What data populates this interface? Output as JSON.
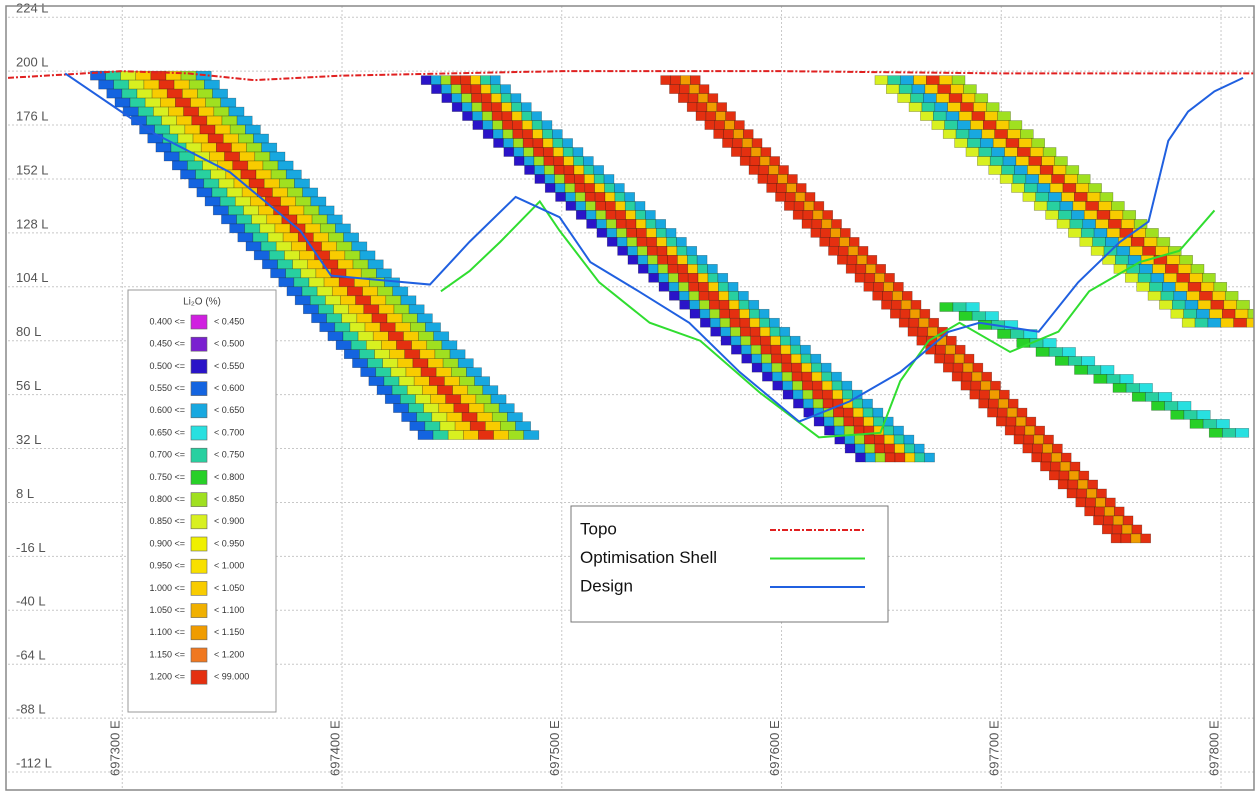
{
  "chart_data": {
    "type": "section",
    "xlim": [
      697248,
      697815
    ],
    "ylim": [
      -120,
      229
    ],
    "grid": true,
    "xticks": [
      {
        "value": 697300,
        "label": "697300 E"
      },
      {
        "value": 697400,
        "label": "697400 E"
      },
      {
        "value": 697500,
        "label": "697500 E"
      },
      {
        "value": 697600,
        "label": "697600 E"
      },
      {
        "value": 697700,
        "label": "697700 E"
      },
      {
        "value": 697800,
        "label": "697800 E"
      }
    ],
    "yticks": [
      {
        "value": 224,
        "label": "224 L"
      },
      {
        "value": 200,
        "label": "200 L"
      },
      {
        "value": 176,
        "label": "176 L"
      },
      {
        "value": 152,
        "label": "152 L"
      },
      {
        "value": 128,
        "label": "128 L"
      },
      {
        "value": 104,
        "label": "104 L"
      },
      {
        "value": 80,
        "label": "80 L"
      },
      {
        "value": 56,
        "label": "56 L"
      },
      {
        "value": 32,
        "label": "32 L"
      },
      {
        "value": 8,
        "label": "8 L"
      },
      {
        "value": -16,
        "label": "-16 L"
      },
      {
        "value": -40,
        "label": "-40 L"
      },
      {
        "value": -64,
        "label": "-64 L"
      },
      {
        "value": -88,
        "label": "-88 L"
      },
      {
        "value": -112,
        "label": "-112 L"
      }
    ],
    "series": [
      {
        "name": "Topo",
        "color": "#e02020",
        "x": [
          697248,
          697300,
          697330,
          697360,
          697400,
          697500,
          697600,
          697700,
          697800,
          697815
        ],
        "values": [
          197,
          200,
          199,
          196,
          198,
          200,
          200,
          199,
          199,
          199
        ]
      },
      {
        "name": "Optimisation Shell",
        "color": "#30dd30",
        "x": [
          697445,
          697458,
          697472,
          697490,
          697499,
          697517,
          697540,
          697563,
          697590,
          697617,
          697645,
          697654,
          697667,
          697681,
          697704,
          697726,
          697740,
          697763,
          697781,
          697797
        ],
        "values": [
          102,
          111,
          124,
          142,
          129,
          106,
          88,
          80,
          57,
          37,
          39,
          62,
          80,
          88,
          75,
          84,
          102,
          115,
          120,
          138
        ]
      },
      {
        "name": "Design",
        "color": "#2060e0",
        "x": [
          697274,
          697313,
          697349,
          697381,
          697395,
          697440,
          697458,
          697479,
          697499,
          697513,
          697535,
          697558,
          697581,
          697608,
          697631,
          697654,
          697676,
          697690,
          697717,
          697735,
          697754,
          697767,
          697776,
          697785,
          697797,
          697810
        ],
        "values": [
          199,
          173,
          155,
          129,
          109,
          105,
          124,
          144,
          135,
          115,
          102,
          88,
          66,
          44,
          53,
          66,
          84,
          88,
          84,
          106,
          124,
          133,
          169,
          182,
          191,
          197
        ]
      }
    ],
    "lodes": [
      {
        "x_top": 697313,
        "y_top": 200,
        "x_bottom": 697463,
        "y_bottom": 39,
        "width": 55,
        "grades": [
          0.55,
          0.7,
          0.85,
          1.0,
          1.25,
          1.0,
          0.8,
          0.6
        ]
      },
      {
        "x_top": 697454,
        "y_top": 198,
        "x_bottom": 697654,
        "y_bottom": 28,
        "width": 36,
        "grades": [
          0.5,
          0.6,
          0.8,
          1.25,
          1.25,
          1.0,
          0.7,
          0.6
        ]
      },
      {
        "x_top": 697554,
        "y_top": 198,
        "x_bottom": 697763,
        "y_bottom": -10,
        "width": 18,
        "grades": [
          1.25,
          1.25,
          1.1,
          1.25
        ]
      },
      {
        "x_top": 697663,
        "y_top": 198,
        "x_bottom": 697808,
        "y_bottom": 86,
        "width": 41,
        "grades": [
          0.85,
          0.7,
          0.6,
          1.0,
          1.25,
          1.0,
          0.8
        ]
      },
      {
        "x_top": 697681,
        "y_top": 97,
        "x_bottom": 697808,
        "y_bottom": 39,
        "width": 18,
        "grades": [
          0.75,
          0.7,
          0.65
        ]
      }
    ],
    "grade_legend": {
      "title": "Li₂O (%)",
      "items": [
        {
          "lower": {
            "value": 0.4,
            "label": "0.400 <="
          },
          "upper": {
            "value": 0.45,
            "label": "< 0.450"
          },
          "color": "#d020e0"
        },
        {
          "lower": {
            "value": 0.45,
            "label": "0.450 <="
          },
          "upper": {
            "value": 0.5,
            "label": "< 0.500"
          },
          "color": "#7a20d0"
        },
        {
          "lower": {
            "value": 0.5,
            "label": "0.500 <="
          },
          "upper": {
            "value": 0.55,
            "label": "< 0.550"
          },
          "color": "#2a14c8"
        },
        {
          "lower": {
            "value": 0.55,
            "label": "0.550 <="
          },
          "upper": {
            "value": 0.6,
            "label": "< 0.600"
          },
          "color": "#1464e0"
        },
        {
          "lower": {
            "value": 0.6,
            "label": "0.600 <="
          },
          "upper": {
            "value": 0.65,
            "label": "< 0.650"
          },
          "color": "#18a8e0"
        },
        {
          "lower": {
            "value": 0.65,
            "label": "0.650 <="
          },
          "upper": {
            "value": 0.7,
            "label": "< 0.700"
          },
          "color": "#28e0e0"
        },
        {
          "lower": {
            "value": 0.7,
            "label": "0.700 <="
          },
          "upper": {
            "value": 0.75,
            "label": "< 0.750"
          },
          "color": "#28d0a0"
        },
        {
          "lower": {
            "value": 0.75,
            "label": "0.750 <="
          },
          "upper": {
            "value": 0.8,
            "label": "< 0.800"
          },
          "color": "#28d028"
        },
        {
          "lower": {
            "value": 0.8,
            "label": "0.800 <="
          },
          "upper": {
            "value": 0.85,
            "label": "< 0.850"
          },
          "color": "#a0e020"
        },
        {
          "lower": {
            "value": 0.85,
            "label": "0.850 <="
          },
          "upper": {
            "value": 0.9,
            "label": "< 0.900"
          },
          "color": "#d8f020"
        },
        {
          "lower": {
            "value": 0.9,
            "label": "0.900 <="
          },
          "upper": {
            "value": 0.95,
            "label": "< 0.950"
          },
          "color": "#f0f000"
        },
        {
          "lower": {
            "value": 0.95,
            "label": "0.950 <="
          },
          "upper": {
            "value": 1.0,
            "label": "< 1.000"
          },
          "color": "#f8e000"
        },
        {
          "lower": {
            "value": 1.0,
            "label": "1.000 <="
          },
          "upper": {
            "value": 1.05,
            "label": "< 1.050"
          },
          "color": "#f8cc00"
        },
        {
          "lower": {
            "value": 1.05,
            "label": "1.050 <="
          },
          "upper": {
            "value": 1.1,
            "label": "< 1.100"
          },
          "color": "#f0b000"
        },
        {
          "lower": {
            "value": 1.1,
            "label": "1.100 <="
          },
          "upper": {
            "value": 1.15,
            "label": "< 1.150"
          },
          "color": "#f09c00"
        },
        {
          "lower": {
            "value": 1.15,
            "label": "1.150 <="
          },
          "upper": {
            "value": 1.2,
            "label": "< 1.200"
          },
          "color": "#f07820"
        },
        {
          "lower": {
            "value": 1.2,
            "label": "1.200 <="
          },
          "upper": {
            "value": 99,
            "label": "< 99.000"
          },
          "color": "#e43010"
        }
      ]
    },
    "legend": "bottom-center"
  }
}
